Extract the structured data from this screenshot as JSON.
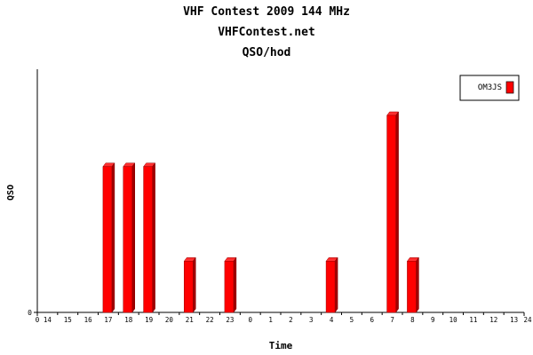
{
  "header": {
    "title": "VHF Contest 2009 144 MHz",
    "subtitle": "VHFContest.net",
    "unit": "QSO/hod"
  },
  "chart_data": {
    "type": "bar",
    "title": "VHF Contest 2009 144 MHz",
    "subtitle": "VHFContest.net",
    "unit_label": "QSO/hod",
    "xlabel": "Time",
    "ylabel": "QSO",
    "x_ticks": [
      "0",
      "14",
      "15",
      "16",
      "17",
      "18",
      "19",
      "20",
      "21",
      "22",
      "23",
      "0",
      "1",
      "2",
      "3",
      "4",
      "5",
      "6",
      "7",
      "8",
      "9",
      "10",
      "11",
      "12",
      "13",
      "24"
    ],
    "categories": [
      "14",
      "15",
      "16",
      "17",
      "18",
      "19",
      "20",
      "21",
      "22",
      "23",
      "0",
      "1",
      "2",
      "3",
      "4",
      "5",
      "6",
      "7",
      "8",
      "9",
      "10",
      "11",
      "12",
      "13"
    ],
    "y_ticks": [
      "0"
    ],
    "ylim": [
      0,
      1
    ],
    "series": [
      {
        "name": "OM3JS",
        "color": "#ff0000",
        "values": [
          0,
          0,
          0,
          0.74,
          0.74,
          0.74,
          0,
          0.26,
          0,
          0.26,
          0,
          0,
          0,
          0,
          0.26,
          0,
          0,
          1.0,
          0.26,
          0,
          0,
          0,
          0,
          0
        ]
      }
    ],
    "legend_position": "top-right",
    "grid": false
  }
}
